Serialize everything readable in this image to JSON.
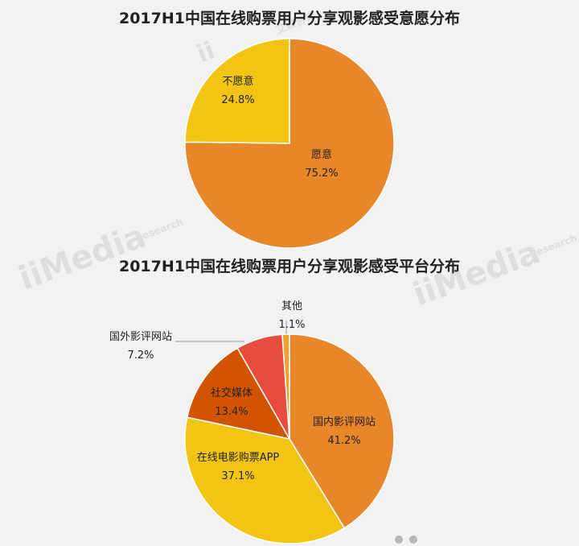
{
  "chart_data": [
    {
      "type": "pie",
      "title": "2017H1中国在线购票用户分享观影感受意愿分布",
      "slices": [
        {
          "label": "愿意",
          "value": 75.2,
          "value_text": "75.2%",
          "color": "#e8872a"
        },
        {
          "label": "不愿意",
          "value": 24.8,
          "value_text": "24.8%",
          "color": "#f2c414"
        }
      ]
    },
    {
      "type": "pie",
      "title": "2017H1中国在线购票用户分享观影感受平台分布",
      "slices": [
        {
          "label": "国内影评网站",
          "value": 41.2,
          "value_text": "41.2%",
          "color": "#e8872a"
        },
        {
          "label": "在线电影购票APP",
          "value": 37.1,
          "value_text": "37.1%",
          "color": "#f2c414"
        },
        {
          "label": "社交媒体",
          "value": 13.4,
          "value_text": "13.4%",
          "color": "#d35400"
        },
        {
          "label": "国外影评网站",
          "value": 7.2,
          "value_text": "7.2%",
          "color": "#e84c3d"
        },
        {
          "label": "其他",
          "value": 1.1,
          "value_text": "1.1%",
          "color": "#f0a030"
        }
      ]
    }
  ],
  "watermark": {
    "brand": "iiMedia",
    "cn": "艾媒咨询",
    "en": "Research"
  },
  "pager": {
    "count": 2
  }
}
